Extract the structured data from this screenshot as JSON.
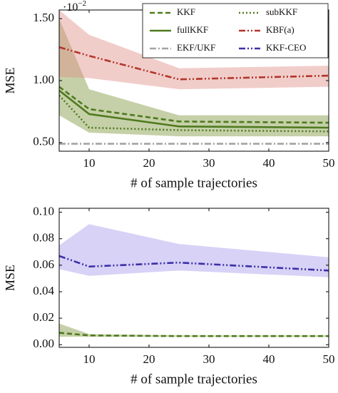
{
  "chart_data": [
    {
      "type": "line",
      "ylabel": "MSE",
      "xlabel": "# of sample trajectories",
      "axis_multiplier": "·10",
      "axis_multiplier_exponent": "−2",
      "x": [
        5,
        10,
        25,
        50
      ],
      "xlim": [
        5,
        50
      ],
      "xticks": [
        10,
        20,
        30,
        40,
        50
      ],
      "ylim": [
        0.43,
        1.57
      ],
      "yticks": [
        {
          "value": 0.5,
          "label": "0.50"
        },
        {
          "value": 1.0,
          "label": "1.00"
        },
        {
          "value": 1.5,
          "label": "1.50"
        }
      ],
      "legend": true,
      "legend_position": "top right",
      "series": [
        {
          "name": "KKF",
          "color": "#4f7a1e",
          "dash": "dashed",
          "values": [
            0.95,
            0.77,
            0.67,
            0.66
          ]
        },
        {
          "name": "subKKF",
          "color": "#4f7a1e",
          "dash": "dotted",
          "values": [
            0.88,
            0.62,
            0.6,
            0.59
          ]
        },
        {
          "name": "fullKKF",
          "color": "#4f7a1e",
          "dash": "solid",
          "values": [
            0.92,
            0.73,
            0.63,
            0.62
          ],
          "band_lower": [
            0.72,
            0.58,
            0.55,
            0.55
          ],
          "band_upper": [
            1.5,
            0.93,
            0.72,
            0.72
          ],
          "band_color": "#7f963f"
        },
        {
          "name": "KBF(a)",
          "color": "#b5352a",
          "dash": "dashdotdot",
          "values": [
            1.27,
            1.2,
            1.01,
            1.04
          ],
          "band_lower": [
            1.03,
            1.02,
            0.93,
            0.95
          ],
          "band_upper": [
            1.57,
            1.37,
            1.1,
            1.12
          ],
          "band_color": "#e0908a"
        },
        {
          "name": "EKF/UKF",
          "color": "#a3a3a3",
          "dash": "dashdot",
          "values": [
            0.49,
            0.49,
            0.49,
            0.49
          ]
        }
      ]
    },
    {
      "type": "line",
      "ylabel": "MSE",
      "xlabel": "# of sample trajectories",
      "x": [
        5,
        10,
        25,
        50
      ],
      "xlim": [
        5,
        50
      ],
      "xticks": [
        10,
        20,
        30,
        40,
        50
      ],
      "ylim": [
        -0.002,
        0.103
      ],
      "yticks": [
        {
          "value": 0,
          "label": "0.00"
        },
        {
          "value": 0.02,
          "label": "0.02"
        },
        {
          "value": 0.04,
          "label": "0.04"
        },
        {
          "value": 0.06,
          "label": "0.06"
        },
        {
          "value": 0.08,
          "label": "0.08"
        },
        {
          "value": 0.1,
          "label": "0.10"
        }
      ],
      "legend": false,
      "series": [
        {
          "name": "KKF",
          "color": "#4f7a1e",
          "dash": "dashed",
          "values": [
            0.009,
            0.007,
            0.0065,
            0.0065
          ],
          "band_lower": [
            0.006,
            0.006,
            0.006,
            0.006
          ],
          "band_upper": [
            0.016,
            0.008,
            0.007,
            0.007
          ],
          "band_color": "#7f963f"
        },
        {
          "name": "KKF-CEO",
          "color": "#3d2fa8",
          "dash": "dashdotdot",
          "values": [
            0.067,
            0.059,
            0.062,
            0.056
          ],
          "band_lower": [
            0.057,
            0.052,
            0.056,
            0.051
          ],
          "band_upper": [
            0.075,
            0.091,
            0.076,
            0.066
          ],
          "band_color": "#a79ceb"
        }
      ]
    }
  ]
}
